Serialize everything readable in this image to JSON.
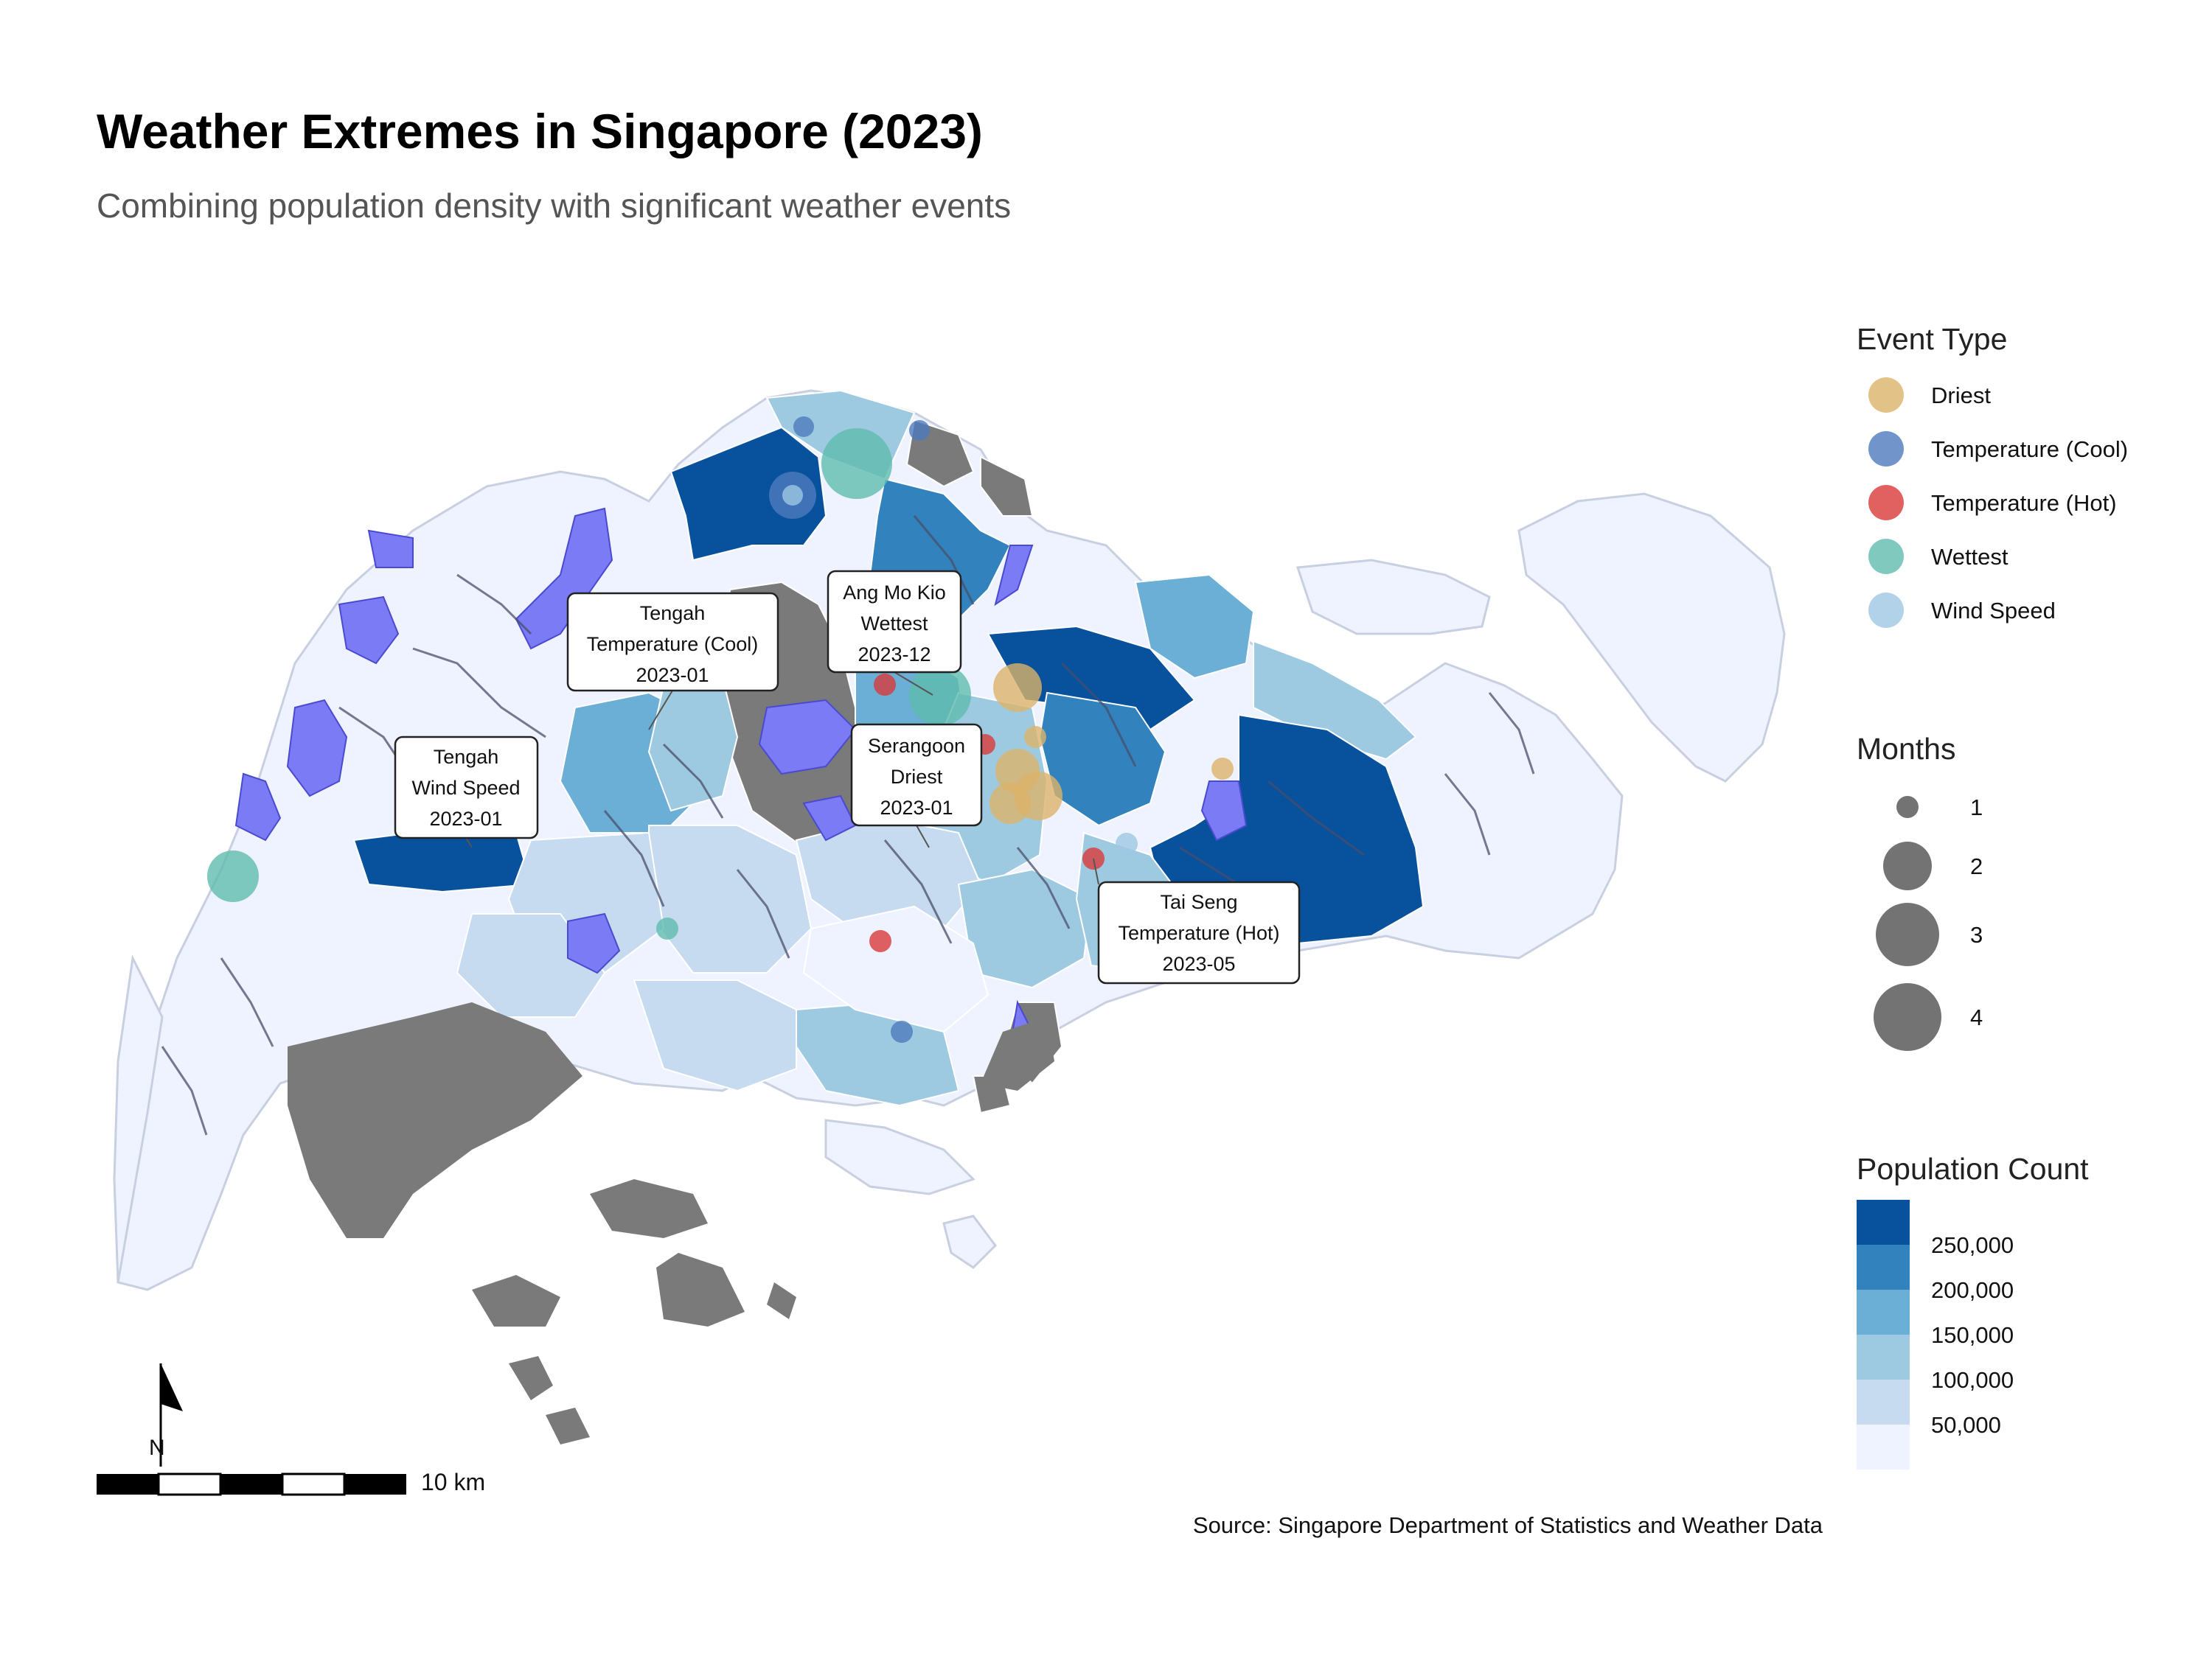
{
  "header": {
    "title": "Weather Extremes in Singapore (2023)",
    "subtitle": "Combining population density with significant weather events"
  },
  "legend_event": {
    "title": "Event Type",
    "items": [
      {
        "label": "Driest",
        "color": "#dcb36a"
      },
      {
        "label": "Temperature (Cool)",
        "color": "#4e7bbd"
      },
      {
        "label": "Temperature (Hot)",
        "color": "#d93a3a"
      },
      {
        "label": "Wettest",
        "color": "#5fbcae"
      },
      {
        "label": "Wind Speed",
        "color": "#9ec7e4"
      }
    ]
  },
  "legend_months": {
    "title": "Months",
    "items": [
      "1",
      "2",
      "3",
      "4"
    ]
  },
  "legend_population": {
    "title": "Population Count",
    "colors": [
      "#08519c",
      "#3182bd",
      "#6baed6",
      "#9ecae1",
      "#c6dbef",
      "#eff3ff"
    ],
    "labels": [
      "250,000",
      "200,000",
      "150,000",
      "100,000",
      "50,000"
    ]
  },
  "callouts": [
    {
      "area": "Tengah",
      "event": "Temperature (Cool)",
      "date": "2023-01"
    },
    {
      "area": "Ang Mo Kio",
      "event": "Wettest",
      "date": "2023-12"
    },
    {
      "area": "Tengah",
      "event": "Wind Speed",
      "date": "2023-01"
    },
    {
      "area": "Serangoon",
      "event": "Driest",
      "date": "2023-01"
    },
    {
      "area": "Tai Seng",
      "event": "Temperature (Hot)",
      "date": "2023-05"
    }
  ],
  "scale_bar": {
    "label": "10 km"
  },
  "north_arrow": {
    "label": "N"
  },
  "source": "Source: Singapore Department of Statistics and Weather Data"
}
